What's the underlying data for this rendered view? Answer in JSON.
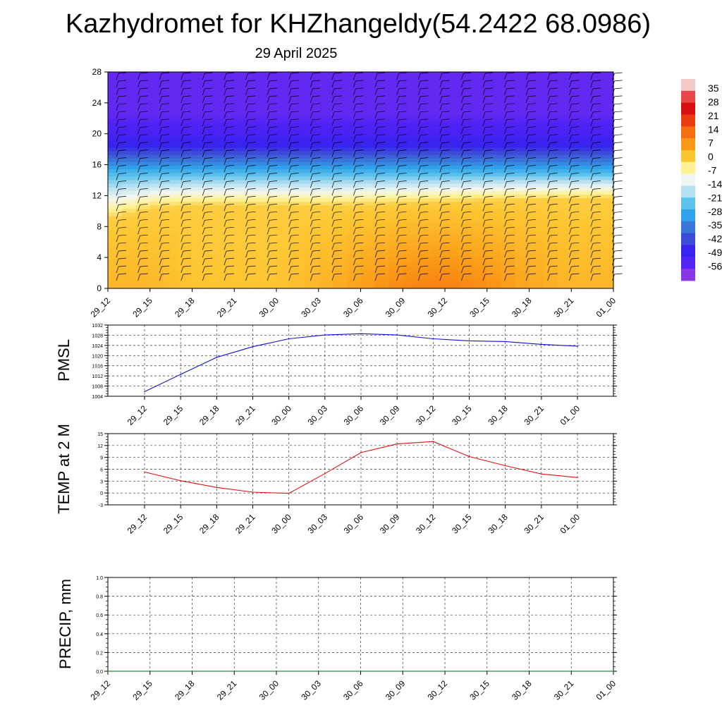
{
  "title": "Kazhydromet for KHZhangeldy(54.2422 68.0986)",
  "subtitle": "29 April 2025",
  "time_labels": [
    "29_12",
    "29_15",
    "29_18",
    "29_21",
    "30_00",
    "30_03",
    "30_06",
    "30_09",
    "30_12",
    "30_15",
    "30_18",
    "30_21",
    "01_00"
  ],
  "colorbar": {
    "labels": [
      "35",
      "28",
      "21",
      "14",
      "7",
      "0",
      "-7",
      "-14",
      "-21",
      "-28",
      "-35",
      "-42",
      "-49",
      "-56"
    ],
    "colors": [
      "#f5c8c8",
      "#e84848",
      "#d81010",
      "#ea3c10",
      "#f66e10",
      "#fa9a16",
      "#fdc631",
      "#fef294",
      "#f2f6f2",
      "#b4e0f2",
      "#5cc2ec",
      "#2ea2ea",
      "#3a76da",
      "#3d4bd9",
      "#3823ef",
      "#5323f6",
      "#8a36e6"
    ]
  },
  "chart_data": [
    {
      "type": "heatmap",
      "title": "",
      "xlabel": "",
      "ylabel": "",
      "x": [
        "29_12",
        "29_15",
        "29_18",
        "29_21",
        "30_00",
        "30_03",
        "30_06",
        "30_09",
        "30_12",
        "30_15",
        "30_18",
        "30_21",
        "01_00"
      ],
      "ylim": [
        0,
        28
      ],
      "yticks": [
        0,
        4,
        8,
        12,
        16,
        20,
        24,
        28
      ],
      "zlim": [
        -56,
        35
      ],
      "description_values": {
        "freezing_level": [
          8.7,
          10.2,
          10.6,
          10.6,
          10.6,
          10.6,
          10.7,
          10.9,
          11.1,
          11.3,
          11.4,
          11.5,
          11.6
        ],
        "temperature_at_0": [
          3,
          3,
          1,
          1,
          1,
          3,
          6,
          9,
          10,
          8,
          5,
          3,
          3
        ],
        "temperature_at_28": [
          -52,
          -52,
          -52,
          -52,
          -52,
          -52,
          -52,
          -52,
          -52,
          -52,
          -52,
          -52,
          -52
        ]
      }
    },
    {
      "type": "line",
      "ylabel": "PMSL",
      "x": [
        "29_12",
        "29_15",
        "29_18",
        "29_21",
        "30_00",
        "30_03",
        "30_06",
        "30_09",
        "30_12",
        "30_15",
        "30_18",
        "30_21",
        "01_00"
      ],
      "series": [
        {
          "values": [
            1005.8,
            1012.6,
            1019.3,
            1023.5,
            1026.6,
            1028.1,
            1028.6,
            1028.1,
            1026.6,
            1025.8,
            1025.5,
            1024.4,
            1023.7
          ]
        }
      ],
      "ylim": [
        1004,
        1032
      ],
      "yticks": [
        1004,
        1008,
        1012,
        1016,
        1020,
        1024,
        1028,
        1032
      ]
    },
    {
      "type": "line",
      "ylabel": "TEMP at 2 M",
      "x": [
        "29_12",
        "29_15",
        "29_18",
        "29_21",
        "30_00",
        "30_03",
        "30_06",
        "30_09",
        "30_12",
        "30_15",
        "30_18",
        "30_21",
        "01_00"
      ],
      "series": [
        {
          "values": [
            5.3,
            3.1,
            1.4,
            0.2,
            -0.1,
            4.9,
            10.2,
            12.4,
            13.0,
            9.2,
            6.9,
            4.8,
            3.9
          ]
        }
      ],
      "ylim": [
        -3,
        15
      ],
      "yticks": [
        -3,
        0,
        3,
        6,
        9,
        12,
        15
      ]
    },
    {
      "type": "line",
      "ylabel": "PRECIP, mm",
      "x": [
        "29_12",
        "29_15",
        "29_18",
        "29_21",
        "30_00",
        "30_03",
        "30_06",
        "30_09",
        "30_12",
        "30_15",
        "30_18",
        "30_21",
        "01_00"
      ],
      "series": [
        {
          "values": [
            0,
            0,
            0,
            0,
            0,
            0,
            0,
            0,
            0,
            0,
            0,
            0,
            0
          ]
        }
      ],
      "ylim": [
        0.0,
        1.0
      ],
      "yticks": [
        "0.0",
        "0.2",
        "0.4",
        "0.6",
        "0.8",
        "1.0"
      ]
    }
  ]
}
